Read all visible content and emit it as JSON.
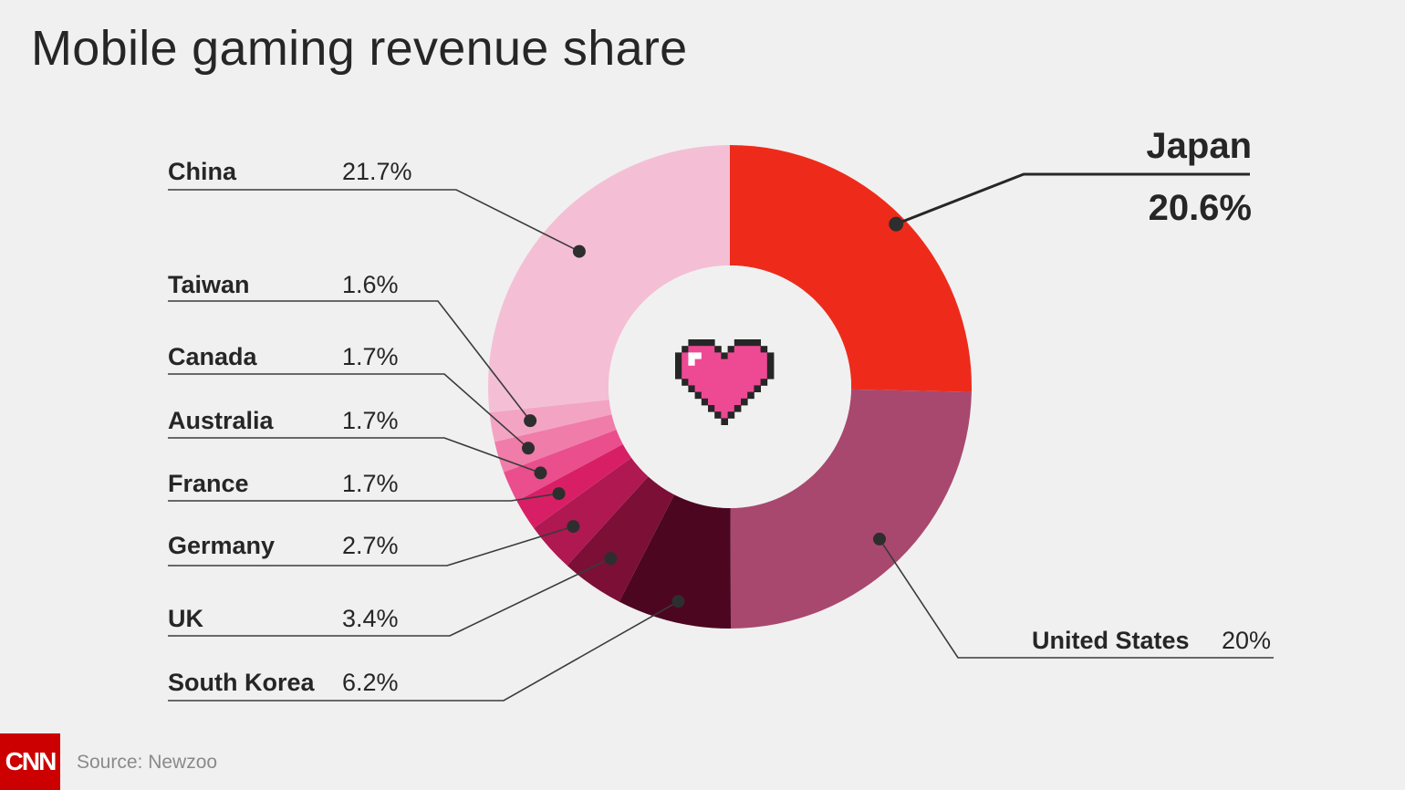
{
  "title": "Mobile gaming revenue share",
  "source": "Source: Newzoo",
  "logo_text": "CNN",
  "colors": {
    "background": "#f0f0f0",
    "logo": "#cc0000"
  },
  "center_icon": "pixel-heart-icon",
  "chart_data": {
    "type": "pie",
    "title": "Mobile gaming revenue share",
    "slices": [
      {
        "label": "Japan",
        "display": "20.6%",
        "value": 20.6,
        "color": "#ee2b1b"
      },
      {
        "label": "United States",
        "display": "20%",
        "value": 20.0,
        "color": "#a8486e"
      },
      {
        "label": "South Korea",
        "display": "6.2%",
        "value": 6.2,
        "color": "#4c0620"
      },
      {
        "label": "UK",
        "display": "3.4%",
        "value": 3.4,
        "color": "#7b0f36"
      },
      {
        "label": "Germany",
        "display": "2.7%",
        "value": 2.7,
        "color": "#b01852"
      },
      {
        "label": "France",
        "display": "1.7%",
        "value": 1.7,
        "color": "#d81f66"
      },
      {
        "label": "Australia",
        "display": "1.7%",
        "value": 1.7,
        "color": "#ea4e8c"
      },
      {
        "label": "Canada",
        "display": "1.7%",
        "value": 1.7,
        "color": "#f07ca9"
      },
      {
        "label": "Taiwan",
        "display": "1.6%",
        "value": 1.6,
        "color": "#f4a4c3"
      },
      {
        "label": "China",
        "display": "21.7%",
        "value": 21.7,
        "color": "#f4bfd5"
      }
    ]
  }
}
